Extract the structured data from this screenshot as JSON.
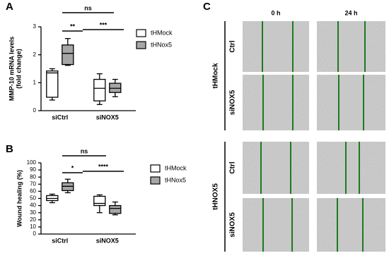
{
  "chart_data": [
    {
      "type": "box",
      "panel_label": "A",
      "ylabel": [
        "MMP-10 mRNA levels",
        "(fold change)"
      ],
      "categories": [
        "siCtrl",
        "siNOX5"
      ],
      "ylim": [
        0,
        3
      ],
      "yticks": [
        0,
        1,
        2,
        3
      ],
      "series": [
        {
          "name": "tHMock",
          "color": "#ffffff",
          "values": [
            {
              "min": 0.38,
              "q1": 0.48,
              "median": 1.35,
              "q3": 1.42,
              "max": 1.5
            },
            {
              "min": 0.22,
              "q1": 0.35,
              "median": 0.8,
              "q3": 1.12,
              "max": 1.32
            }
          ]
        },
        {
          "name": "tHNox5",
          "color": "#a6a6a6",
          "values": [
            {
              "min": 1.62,
              "q1": 1.65,
              "median": 2.05,
              "q3": 2.35,
              "max": 2.58
            },
            {
              "min": 0.5,
              "q1": 0.65,
              "median": 0.8,
              "q3": 0.98,
              "max": 1.12
            }
          ]
        }
      ],
      "annotations": [
        "ns",
        "**",
        "***"
      ]
    },
    {
      "type": "box",
      "panel_label": "B",
      "ylabel": [
        "Wound healing (%)"
      ],
      "categories": [
        "siCtrl",
        "siNOX5"
      ],
      "ylim": [
        0,
        100
      ],
      "yticks": [
        0,
        10,
        20,
        30,
        40,
        50,
        60,
        70,
        80,
        90,
        100
      ],
      "series": [
        {
          "name": "tHMock",
          "color": "#ffffff",
          "values": [
            {
              "min": 44,
              "q1": 47,
              "median": 50,
              "q3": 54,
              "max": 56
            },
            {
              "min": 30,
              "q1": 40,
              "median": 43,
              "q3": 53,
              "max": 55
            }
          ]
        },
        {
          "name": "tHNox5",
          "color": "#a6a6a6",
          "values": [
            {
              "min": 58,
              "q1": 61,
              "median": 67,
              "q3": 72,
              "max": 77
            },
            {
              "min": 27,
              "q1": 29,
              "median": 36,
              "q3": 40,
              "max": 45
            }
          ]
        }
      ],
      "annotations": [
        "ns",
        "*",
        "****"
      ]
    }
  ],
  "panel_c": {
    "label": "C",
    "columns": [
      "0 h",
      "24 h"
    ],
    "groups": [
      {
        "name": "tHMock",
        "rows": [
          "Ctrl",
          "siNOX5"
        ]
      },
      {
        "name": "tHNOX5",
        "rows": [
          "Ctrl",
          "siNOX5"
        ]
      }
    ]
  }
}
